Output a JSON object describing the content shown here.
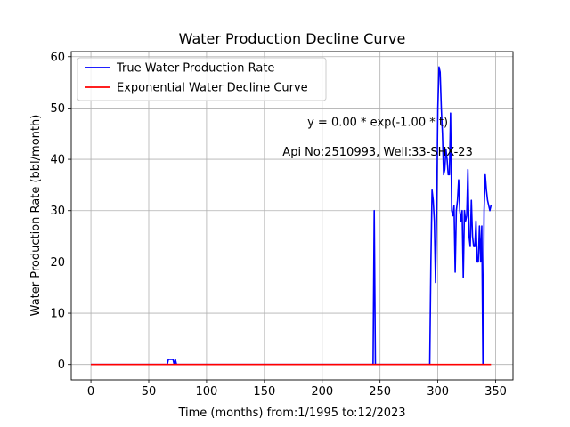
{
  "chart_data": {
    "type": "line",
    "title": "Water Production Decline Curve",
    "xlabel": "Time (months) from:1/1995 to:12/2023",
    "ylabel": "Water Production Rate (bbl/month)",
    "xlim": [
      -17,
      365
    ],
    "ylim": [
      -3,
      61
    ],
    "xticks": [
      0,
      50,
      100,
      150,
      200,
      250,
      300,
      350
    ],
    "yticks": [
      0,
      10,
      20,
      30,
      40,
      50,
      60
    ],
    "grid": true,
    "legend_position": "top-left",
    "annotations": [
      {
        "text": "y = 0.00 * exp(-1.00 * t)",
        "x": 248,
        "y": 47.3
      },
      {
        "text": "Api No:2510993, Well:33-SHX-23",
        "x": 248,
        "y": 41.5
      }
    ],
    "series": [
      {
        "name": "True Water Production Rate",
        "color": "#0000ff",
        "points": [
          [
            0,
            0
          ],
          [
            66,
            0
          ],
          [
            67,
            1
          ],
          [
            68,
            1
          ],
          [
            69,
            1
          ],
          [
            70,
            1
          ],
          [
            71,
            1
          ],
          [
            72,
            0
          ],
          [
            73,
            1
          ],
          [
            74,
            0
          ],
          [
            75,
            0
          ],
          [
            244,
            0
          ],
          [
            245,
            30
          ],
          [
            246,
            0
          ],
          [
            247,
            0
          ],
          [
            293,
            0
          ],
          [
            294,
            20
          ],
          [
            295,
            34
          ],
          [
            296,
            32
          ],
          [
            297,
            28
          ],
          [
            298,
            16
          ],
          [
            299,
            30
          ],
          [
            300,
            50
          ],
          [
            301,
            58
          ],
          [
            302,
            57
          ],
          [
            303,
            50
          ],
          [
            304,
            45
          ],
          [
            305,
            37
          ],
          [
            306,
            38
          ],
          [
            307,
            42
          ],
          [
            308,
            40
          ],
          [
            309,
            37
          ],
          [
            310,
            37
          ],
          [
            311,
            49
          ],
          [
            312,
            30
          ],
          [
            313,
            29
          ],
          [
            314,
            31
          ],
          [
            315,
            18
          ],
          [
            316,
            30
          ],
          [
            317,
            32
          ],
          [
            318,
            36
          ],
          [
            319,
            30
          ],
          [
            320,
            28
          ],
          [
            321,
            30
          ],
          [
            322,
            17
          ],
          [
            323,
            30
          ],
          [
            324,
            28
          ],
          [
            325,
            29
          ],
          [
            326,
            38
          ],
          [
            327,
            25
          ],
          [
            328,
            23
          ],
          [
            329,
            32
          ],
          [
            330,
            25
          ],
          [
            331,
            23
          ],
          [
            332,
            23
          ],
          [
            333,
            28
          ],
          [
            334,
            20
          ],
          [
            335,
            20
          ],
          [
            336,
            27
          ],
          [
            337,
            20
          ],
          [
            338,
            27
          ],
          [
            339,
            0
          ],
          [
            340,
            30
          ],
          [
            341,
            37
          ],
          [
            342,
            34
          ],
          [
            343,
            32
          ],
          [
            344,
            31
          ],
          [
            345,
            30
          ],
          [
            346,
            31
          ]
        ]
      },
      {
        "name": "Exponential Water Decline Curve",
        "color": "#ff0000",
        "points": [
          [
            0,
            0
          ],
          [
            346,
            0
          ]
        ]
      }
    ]
  }
}
